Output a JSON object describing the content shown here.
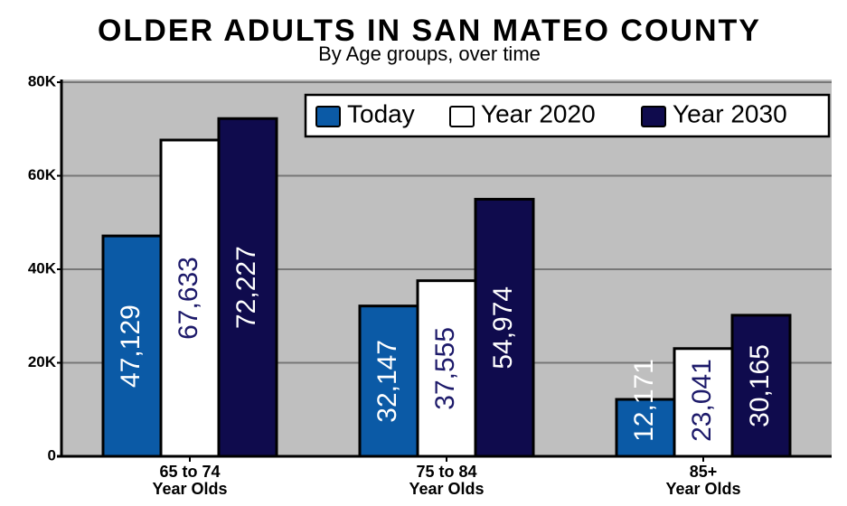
{
  "chart_data": {
    "type": "bar",
    "title": "OLDER ADULTS IN SAN MATEO COUNTY",
    "subtitle": "By Age groups, over time",
    "categories": [
      "65 to 74\nYear Olds",
      "75 to 84\nYear Olds",
      "85+\nYear Olds"
    ],
    "series": [
      {
        "name": "Today",
        "color": "#0b5aa6",
        "label_color": "#ffffff",
        "values": [
          47129,
          32147,
          12171
        ],
        "value_labels": [
          "47,129",
          "32,147",
          "12,171"
        ]
      },
      {
        "name": "Year 2020",
        "color": "#ffffff",
        "label_color": "#1d1a6a",
        "values": [
          67633,
          37555,
          23041
        ],
        "value_labels": [
          "67,633",
          "37,555",
          "23,041"
        ]
      },
      {
        "name": "Year 2030",
        "color": "#0f0b4d",
        "label_color": "#ffffff",
        "values": [
          72227,
          54974,
          30165
        ],
        "value_labels": [
          "72,227",
          "54,974",
          "30,165"
        ]
      }
    ],
    "ylim": [
      0,
      80000
    ],
    "yticks": [
      0,
      {
        "value": 20000,
        "label": "20K"
      },
      {
        "value": 40000,
        "label": "40K"
      },
      {
        "value": 60000,
        "label": "60K"
      },
      {
        "value": 80000,
        "label": "80K"
      }
    ],
    "grid": true,
    "legend": "top-right"
  }
}
